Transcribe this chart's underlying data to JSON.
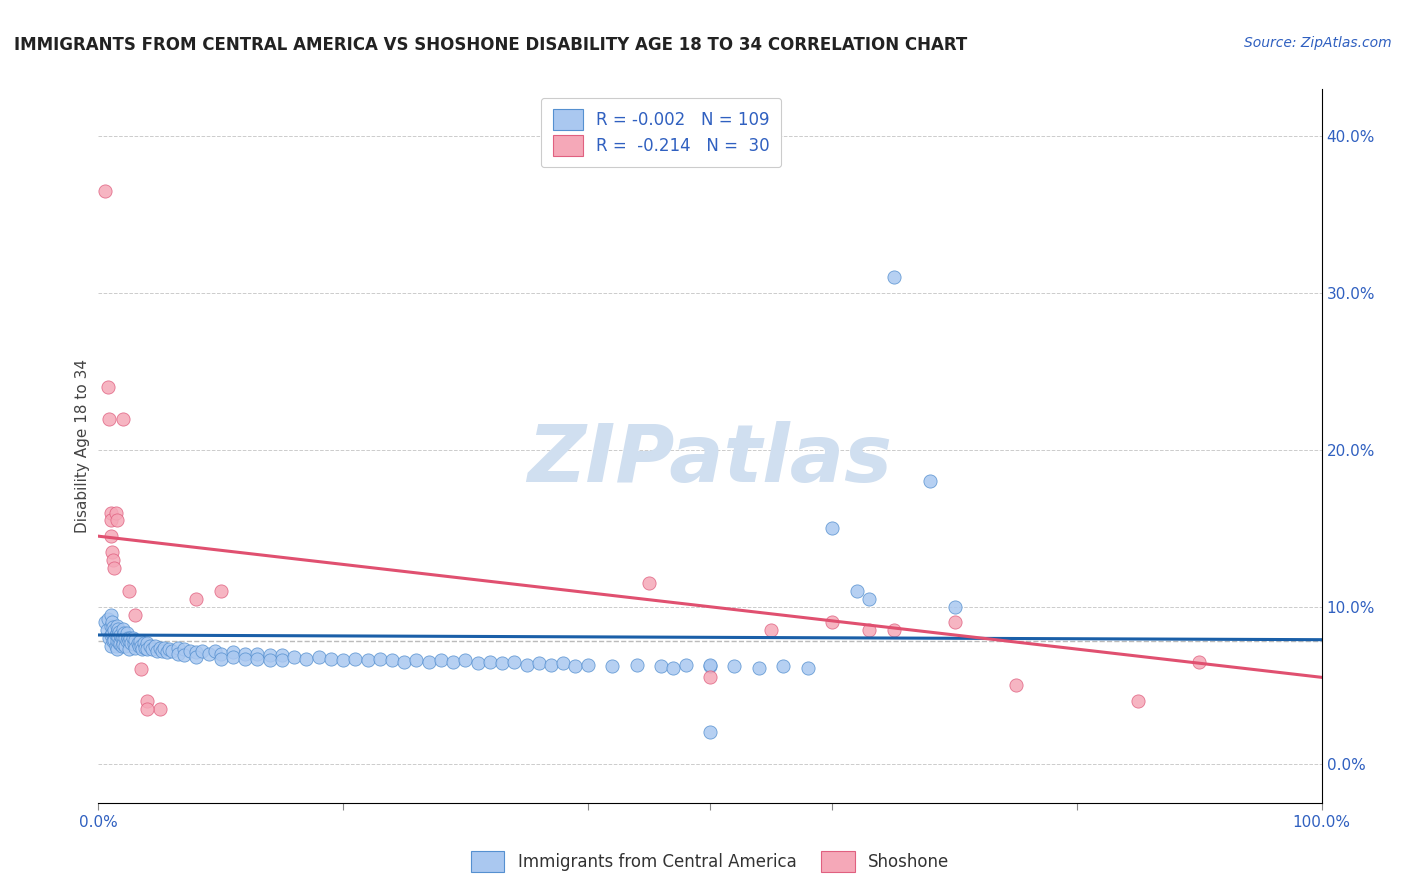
{
  "title": "IMMIGRANTS FROM CENTRAL AMERICA VS SHOSHONE DISABILITY AGE 18 TO 34 CORRELATION CHART",
  "source": "Source: ZipAtlas.com",
  "ylabel": "Disability Age 18 to 34",
  "xlim": [
    0.0,
    1.0
  ],
  "ylim": [
    -0.025,
    0.43
  ],
  "blue_color": "#aac8f0",
  "pink_color": "#f5a8b8",
  "blue_edge_color": "#5590d0",
  "pink_edge_color": "#e06080",
  "blue_line_color": "#1a5fa8",
  "pink_line_color": "#e05070",
  "grid_color": "#cccccc",
  "dashed_color": "#bbbbbb",
  "watermark_color": "#d0dff0",
  "title_color": "#222222",
  "source_color": "#3060c0",
  "tick_label_color": "#3060c0",
  "legend_text_color": "#3060c0",
  "ylabel_color": "#444444",
  "yticks_right": [
    0.0,
    0.1,
    0.2,
    0.3,
    0.4
  ],
  "yticklabels_right": [
    "0.0%",
    "10.0%",
    "20.0%",
    "30.0%",
    "40.0%"
  ],
  "blue_trend_x": [
    0.0,
    1.0
  ],
  "blue_trend_y": [
    0.082,
    0.079
  ],
  "pink_trend_x": [
    0.0,
    1.0
  ],
  "pink_trend_y": [
    0.145,
    0.055
  ],
  "dashed_line_y": 0.078,
  "blue_scatter": [
    [
      0.005,
      0.09
    ],
    [
      0.007,
      0.085
    ],
    [
      0.008,
      0.092
    ],
    [
      0.009,
      0.08
    ],
    [
      0.01,
      0.095
    ],
    [
      0.01,
      0.088
    ],
    [
      0.01,
      0.082
    ],
    [
      0.01,
      0.075
    ],
    [
      0.011,
      0.09
    ],
    [
      0.011,
      0.083
    ],
    [
      0.012,
      0.087
    ],
    [
      0.012,
      0.078
    ],
    [
      0.013,
      0.085
    ],
    [
      0.013,
      0.079
    ],
    [
      0.014,
      0.082
    ],
    [
      0.014,
      0.075
    ],
    [
      0.015,
      0.088
    ],
    [
      0.015,
      0.083
    ],
    [
      0.015,
      0.078
    ],
    [
      0.015,
      0.073
    ],
    [
      0.016,
      0.086
    ],
    [
      0.016,
      0.081
    ],
    [
      0.017,
      0.084
    ],
    [
      0.017,
      0.077
    ],
    [
      0.018,
      0.082
    ],
    [
      0.018,
      0.076
    ],
    [
      0.019,
      0.08
    ],
    [
      0.019,
      0.075
    ],
    [
      0.02,
      0.086
    ],
    [
      0.02,
      0.081
    ],
    [
      0.02,
      0.076
    ],
    [
      0.021,
      0.083
    ],
    [
      0.022,
      0.08
    ],
    [
      0.022,
      0.075
    ],
    [
      0.023,
      0.083
    ],
    [
      0.023,
      0.078
    ],
    [
      0.024,
      0.08
    ],
    [
      0.025,
      0.078
    ],
    [
      0.025,
      0.073
    ],
    [
      0.026,
      0.08
    ],
    [
      0.027,
      0.077
    ],
    [
      0.028,
      0.08
    ],
    [
      0.029,
      0.076
    ],
    [
      0.03,
      0.079
    ],
    [
      0.03,
      0.074
    ],
    [
      0.032,
      0.077
    ],
    [
      0.033,
      0.075
    ],
    [
      0.034,
      0.078
    ],
    [
      0.035,
      0.075
    ],
    [
      0.036,
      0.073
    ],
    [
      0.037,
      0.077
    ],
    [
      0.038,
      0.074
    ],
    [
      0.04,
      0.077
    ],
    [
      0.04,
      0.073
    ],
    [
      0.042,
      0.075
    ],
    [
      0.044,
      0.073
    ],
    [
      0.046,
      0.075
    ],
    [
      0.048,
      0.072
    ],
    [
      0.05,
      0.074
    ],
    [
      0.052,
      0.072
    ],
    [
      0.054,
      0.074
    ],
    [
      0.056,
      0.071
    ],
    [
      0.058,
      0.073
    ],
    [
      0.06,
      0.072
    ],
    [
      0.065,
      0.074
    ],
    [
      0.065,
      0.07
    ],
    [
      0.07,
      0.073
    ],
    [
      0.07,
      0.069
    ],
    [
      0.075,
      0.072
    ],
    [
      0.08,
      0.071
    ],
    [
      0.08,
      0.068
    ],
    [
      0.085,
      0.072
    ],
    [
      0.09,
      0.07
    ],
    [
      0.095,
      0.072
    ],
    [
      0.1,
      0.07
    ],
    [
      0.1,
      0.067
    ],
    [
      0.11,
      0.071
    ],
    [
      0.11,
      0.068
    ],
    [
      0.12,
      0.07
    ],
    [
      0.12,
      0.067
    ],
    [
      0.13,
      0.07
    ],
    [
      0.13,
      0.067
    ],
    [
      0.14,
      0.069
    ],
    [
      0.14,
      0.066
    ],
    [
      0.15,
      0.069
    ],
    [
      0.15,
      0.066
    ],
    [
      0.16,
      0.068
    ],
    [
      0.17,
      0.067
    ],
    [
      0.18,
      0.068
    ],
    [
      0.19,
      0.067
    ],
    [
      0.2,
      0.066
    ],
    [
      0.21,
      0.067
    ],
    [
      0.22,
      0.066
    ],
    [
      0.23,
      0.067
    ],
    [
      0.24,
      0.066
    ],
    [
      0.25,
      0.065
    ],
    [
      0.26,
      0.066
    ],
    [
      0.27,
      0.065
    ],
    [
      0.28,
      0.066
    ],
    [
      0.29,
      0.065
    ],
    [
      0.3,
      0.066
    ],
    [
      0.31,
      0.064
    ],
    [
      0.32,
      0.065
    ],
    [
      0.33,
      0.064
    ],
    [
      0.34,
      0.065
    ],
    [
      0.35,
      0.063
    ],
    [
      0.36,
      0.064
    ],
    [
      0.37,
      0.063
    ],
    [
      0.38,
      0.064
    ],
    [
      0.39,
      0.062
    ],
    [
      0.4,
      0.063
    ],
    [
      0.42,
      0.062
    ],
    [
      0.44,
      0.063
    ],
    [
      0.46,
      0.062
    ],
    [
      0.47,
      0.061
    ],
    [
      0.48,
      0.063
    ],
    [
      0.5,
      0.062
    ],
    [
      0.5,
      0.063
    ],
    [
      0.52,
      0.062
    ],
    [
      0.54,
      0.061
    ],
    [
      0.56,
      0.062
    ],
    [
      0.58,
      0.061
    ],
    [
      0.6,
      0.15
    ],
    [
      0.62,
      0.11
    ],
    [
      0.63,
      0.105
    ],
    [
      0.65,
      0.31
    ],
    [
      0.68,
      0.18
    ],
    [
      0.7,
      0.1
    ],
    [
      0.5,
      0.02
    ]
  ],
  "pink_scatter": [
    [
      0.005,
      0.365
    ],
    [
      0.008,
      0.24
    ],
    [
      0.009,
      0.22
    ],
    [
      0.01,
      0.16
    ],
    [
      0.01,
      0.155
    ],
    [
      0.01,
      0.145
    ],
    [
      0.011,
      0.135
    ],
    [
      0.012,
      0.13
    ],
    [
      0.013,
      0.125
    ],
    [
      0.014,
      0.16
    ],
    [
      0.015,
      0.155
    ],
    [
      0.02,
      0.22
    ],
    [
      0.025,
      0.11
    ],
    [
      0.03,
      0.095
    ],
    [
      0.035,
      0.06
    ],
    [
      0.04,
      0.04
    ],
    [
      0.05,
      0.035
    ],
    [
      0.08,
      0.105
    ],
    [
      0.1,
      0.11
    ],
    [
      0.45,
      0.115
    ],
    [
      0.5,
      0.055
    ],
    [
      0.55,
      0.085
    ],
    [
      0.6,
      0.09
    ],
    [
      0.63,
      0.085
    ],
    [
      0.65,
      0.085
    ],
    [
      0.7,
      0.09
    ],
    [
      0.75,
      0.05
    ],
    [
      0.85,
      0.04
    ],
    [
      0.9,
      0.065
    ],
    [
      0.04,
      0.035
    ]
  ]
}
